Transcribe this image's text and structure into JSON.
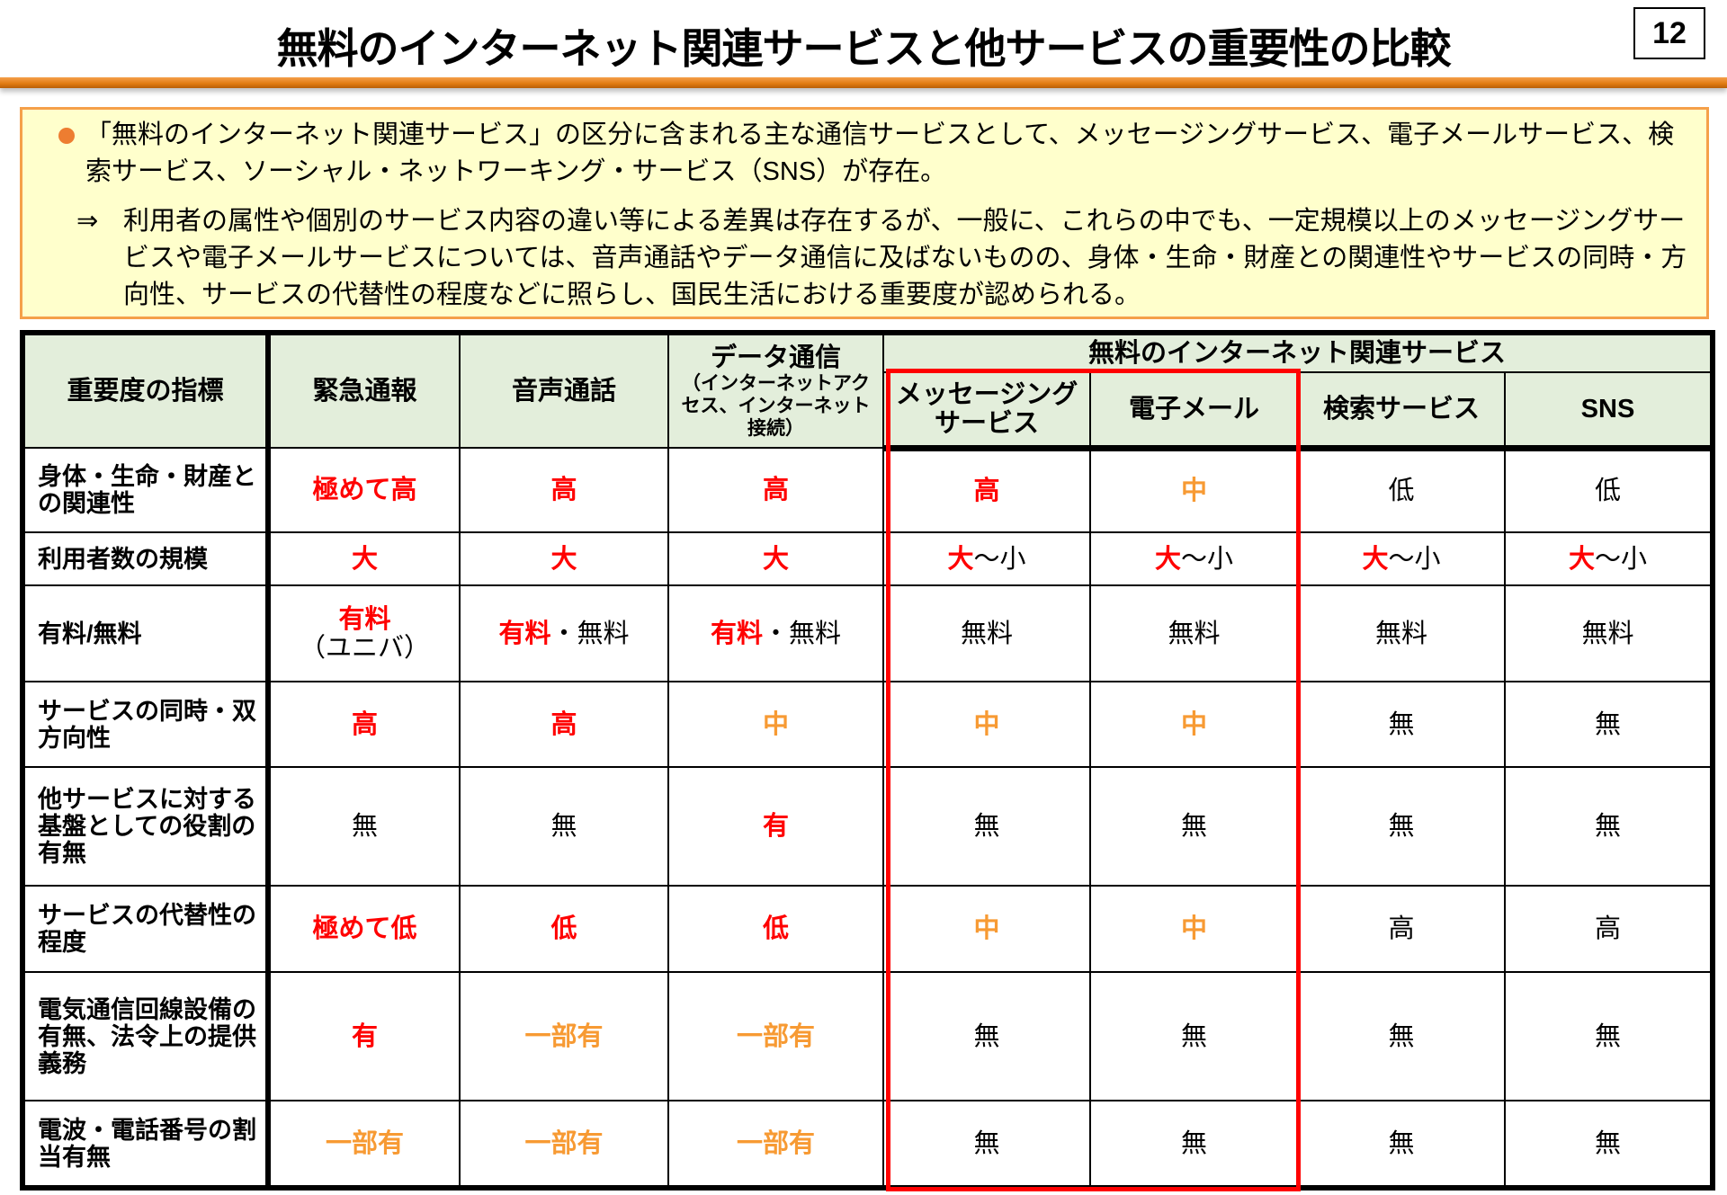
{
  "header": {
    "title": "無料のインターネット関連サービスと他サービスの重要性の比較",
    "page_number": "12"
  },
  "summary": {
    "bullet": "「無料のインターネット関連サービス」の区分に含まれる主な通信サービスとして、メッセージングサービス、電子メールサービス、検索サービス、ソーシャル・ネットワーキング・サービス（SNS）が存在。",
    "arrow": "⇒",
    "conclusion": "利用者の属性や個別のサービス内容の違い等による差異は存在するが、一般に、これらの中でも、一定規模以上のメッセージングサービスや電子メールサービスについては、音声通話やデータ通信に及ばないものの、身体・生命・財産との関連性やサービスの同時・方向性、サービスの代替性の程度などに照らし、国民生活における重要度が認められる。"
  },
  "colors": {
    "red": "#ff0000",
    "orange": "#f79a33",
    "header_bg": "#e3eedb",
    "summary_bg": "#ffffcc",
    "accent": "#ed7d31"
  },
  "table": {
    "headers": {
      "indicator": "重要度の指標",
      "emergency": "緊急通報",
      "voice": "音声通話",
      "data": "データ通信",
      "data_sub": "（インターネットアクセス、インターネット接続）",
      "free_group": "無料のインターネット関連サービス",
      "messaging": "メッセージングサービス",
      "email": "電子メール",
      "search": "検索サービス",
      "sns": "SNS"
    },
    "rows": [
      {
        "label": "身体・生命・財産との関連性",
        "cells": [
          [
            {
              "t": "極めて高",
              "c": "red"
            }
          ],
          [
            {
              "t": "高",
              "c": "red"
            }
          ],
          [
            {
              "t": "高",
              "c": "red"
            }
          ],
          [
            {
              "t": "高",
              "c": "red"
            }
          ],
          [
            {
              "t": "中",
              "c": "orange"
            }
          ],
          [
            {
              "t": "低",
              "c": "black"
            }
          ],
          [
            {
              "t": "低",
              "c": "black"
            }
          ]
        ]
      },
      {
        "label": "利用者数の規模",
        "cells": [
          [
            {
              "t": "大",
              "c": "red"
            }
          ],
          [
            {
              "t": "大",
              "c": "red"
            }
          ],
          [
            {
              "t": "大",
              "c": "red"
            }
          ],
          [
            {
              "t": "大",
              "c": "red"
            },
            {
              "t": "～小",
              "c": "black"
            }
          ],
          [
            {
              "t": "大",
              "c": "red"
            },
            {
              "t": "～小",
              "c": "black"
            }
          ],
          [
            {
              "t": "大",
              "c": "red"
            },
            {
              "t": "～小",
              "c": "black"
            }
          ],
          [
            {
              "t": "大",
              "c": "red"
            },
            {
              "t": "～小",
              "c": "black"
            }
          ]
        ]
      },
      {
        "label": "有料/無料",
        "cells": [
          [
            {
              "t": "有料",
              "c": "red",
              "br": true
            },
            {
              "t": "（ユニバ）",
              "c": "black"
            }
          ],
          [
            {
              "t": "有料",
              "c": "red"
            },
            {
              "t": "・無料",
              "c": "black"
            }
          ],
          [
            {
              "t": "有料",
              "c": "red"
            },
            {
              "t": "・無料",
              "c": "black"
            }
          ],
          [
            {
              "t": "無料",
              "c": "black"
            }
          ],
          [
            {
              "t": "無料",
              "c": "black"
            }
          ],
          [
            {
              "t": "無料",
              "c": "black"
            }
          ],
          [
            {
              "t": "無料",
              "c": "black"
            }
          ]
        ]
      },
      {
        "label": "サービスの同時・双方向性",
        "cells": [
          [
            {
              "t": "高",
              "c": "red"
            }
          ],
          [
            {
              "t": "高",
              "c": "red"
            }
          ],
          [
            {
              "t": "中",
              "c": "orange"
            }
          ],
          [
            {
              "t": "中",
              "c": "orange"
            }
          ],
          [
            {
              "t": "中",
              "c": "orange"
            }
          ],
          [
            {
              "t": "無",
              "c": "black"
            }
          ],
          [
            {
              "t": "無",
              "c": "black"
            }
          ]
        ]
      },
      {
        "label": "他サービスに対する基盤としての役割の有無",
        "cells": [
          [
            {
              "t": "無",
              "c": "black"
            }
          ],
          [
            {
              "t": "無",
              "c": "black"
            }
          ],
          [
            {
              "t": "有",
              "c": "red"
            }
          ],
          [
            {
              "t": "無",
              "c": "black"
            }
          ],
          [
            {
              "t": "無",
              "c": "black"
            }
          ],
          [
            {
              "t": "無",
              "c": "black"
            }
          ],
          [
            {
              "t": "無",
              "c": "black"
            }
          ]
        ]
      },
      {
        "label": "サービスの代替性の程度",
        "cells": [
          [
            {
              "t": "極めて低",
              "c": "red"
            }
          ],
          [
            {
              "t": "低",
              "c": "red"
            }
          ],
          [
            {
              "t": "低",
              "c": "red"
            }
          ],
          [
            {
              "t": "中",
              "c": "orange"
            }
          ],
          [
            {
              "t": "中",
              "c": "orange"
            }
          ],
          [
            {
              "t": "高",
              "c": "black"
            }
          ],
          [
            {
              "t": "高",
              "c": "black"
            }
          ]
        ]
      },
      {
        "label": "電気通信回線設備の有無、法令上の提供義務",
        "cells": [
          [
            {
              "t": "有",
              "c": "red"
            }
          ],
          [
            {
              "t": "一部有",
              "c": "orange"
            }
          ],
          [
            {
              "t": "一部有",
              "c": "orange"
            }
          ],
          [
            {
              "t": "無",
              "c": "black"
            }
          ],
          [
            {
              "t": "無",
              "c": "black"
            }
          ],
          [
            {
              "t": "無",
              "c": "black"
            }
          ],
          [
            {
              "t": "無",
              "c": "black"
            }
          ]
        ]
      },
      {
        "label": "電波・電話番号の割当有無",
        "cells": [
          [
            {
              "t": "一部有",
              "c": "orange"
            }
          ],
          [
            {
              "t": "一部有",
              "c": "orange"
            }
          ],
          [
            {
              "t": "一部有",
              "c": "orange"
            }
          ],
          [
            {
              "t": "無",
              "c": "black"
            }
          ],
          [
            {
              "t": "無",
              "c": "black"
            }
          ],
          [
            {
              "t": "無",
              "c": "black"
            }
          ],
          [
            {
              "t": "無",
              "c": "black"
            }
          ]
        ]
      }
    ]
  }
}
